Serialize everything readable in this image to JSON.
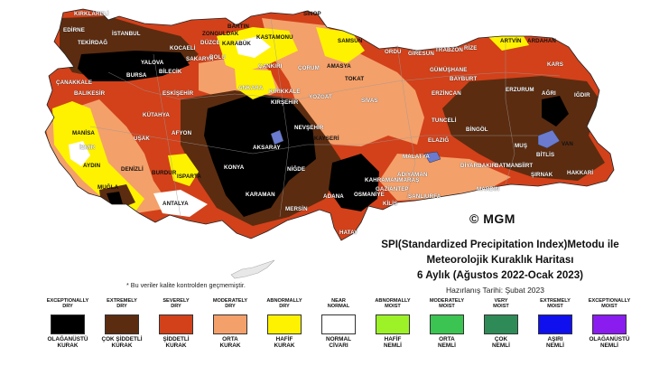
{
  "map": {
    "logo": "© MGM",
    "note": "* Bu veriler kalite kontrolden geçmemiştir.",
    "title_line1": "SPI(Standardized Precipitation Index)Metodu ile",
    "title_line2": "Meteorolojik Kuraklık Haritası",
    "title_line3": "6 Aylık (Ağustos 2022-Ocak 2023)",
    "prepared": "Hazırlanış Tarihi: Şubat 2023",
    "cities": [
      "KIRKLARELİ",
      "EDİRNE",
      "TEKİRDAĞ",
      "İSTANBUL",
      "KOCAELİ",
      "SAKARYA",
      "DÜZCE",
      "BOLU",
      "BARTIN",
      "ZONGULDAK",
      "KARABÜK",
      "KASTAMONU",
      "SİNOP",
      "SAMSUN",
      "ORDU",
      "GİRESUN",
      "TRABZON",
      "RİZE",
      "ARTVİN",
      "ARDAHAN",
      "KARS",
      "IĞDIR",
      "AĞRI",
      "VAN",
      "HAKKARİ",
      "ŞIRNAK",
      "SİİRT",
      "BİTLİS",
      "MUŞ",
      "BİNGÖL",
      "ERZURUM",
      "ERZİNCAN",
      "BAYBURT",
      "GÜMÜŞHANE",
      "TOKAT",
      "AMASYA",
      "ÇORUM",
      "ÇANKIRI",
      "ANKARA",
      "ESKİŞEHİR",
      "BİLECİK",
      "BURSA",
      "YALOVA",
      "BALIKESİR",
      "ÇANAKKALE",
      "MANİSA",
      "İZMİR",
      "AYDIN",
      "MUĞLA",
      "DENİZLİ",
      "UŞAK",
      "KÜTAHYA",
      "AFYON",
      "BURDUR",
      "ISPARTA",
      "ANTALYA",
      "KONYA",
      "KARAMAN",
      "MERSİN",
      "ADANA",
      "OSMANİYE",
      "HATAY",
      "KİLİS",
      "GAZİANTEP",
      "ŞANLIURFA",
      "ADIYAMAN",
      "MALATYA",
      "ELAZIĞ",
      "TUNCELİ",
      "DİYARBAKIR",
      "MARDİN",
      "BATMAN",
      "SİVAS",
      "KAYSERİ",
      "NİĞDE",
      "NEVŞEHİR",
      "KIRŞEHİR",
      "KIRIKKALE",
      "YOZGAT",
      "AKSARAY",
      "KAHRAMANMARAŞ"
    ]
  },
  "legend": [
    {
      "top": "EXCEPTIONALLY\nDRY",
      "bottom": "OLAĞANÜSTÜ\nKURAK",
      "color": "#000000"
    },
    {
      "top": "EXTREMELY\nDRY",
      "bottom": "ÇOK ŞİDDETLİ\nKURAK",
      "color": "#5c2c10"
    },
    {
      "top": "SEVERELY\nDRY",
      "bottom": "ŞİDDETLİ\nKURAK",
      "color": "#d2411a"
    },
    {
      "top": "MODERATELY\nDRY",
      "bottom": "ORTA\nKURAK",
      "color": "#f4a06a"
    },
    {
      "top": "ABNORMALLY\nDRY",
      "bottom": "HAFİF\nKURAK",
      "color": "#fff200"
    },
    {
      "top": "NEAR\nNORMAL",
      "bottom": "NORMAL\nCİVARI",
      "color": "#ffffff"
    },
    {
      "top": "ABNORMALLY\nMOIST",
      "bottom": "HAFİF\nNEMLİ",
      "color": "#9cf227"
    },
    {
      "top": "MODERATELY\nMOIST",
      "bottom": "ORTA\nNEMLİ",
      "color": "#3bc451"
    },
    {
      "top": "VERY\nMOIST",
      "bottom": "ÇOK\nNEMLİ",
      "color": "#2e8b57"
    },
    {
      "top": "EXTREMELY\nMOIST",
      "bottom": "AŞIRI\nNEMLİ",
      "color": "#1010ee"
    },
    {
      "top": "EXCEPTIONALLY\nMOIST",
      "bottom": "OLAĞANÜSTÜ\nNEMLİ",
      "color": "#8a1cf0"
    }
  ]
}
